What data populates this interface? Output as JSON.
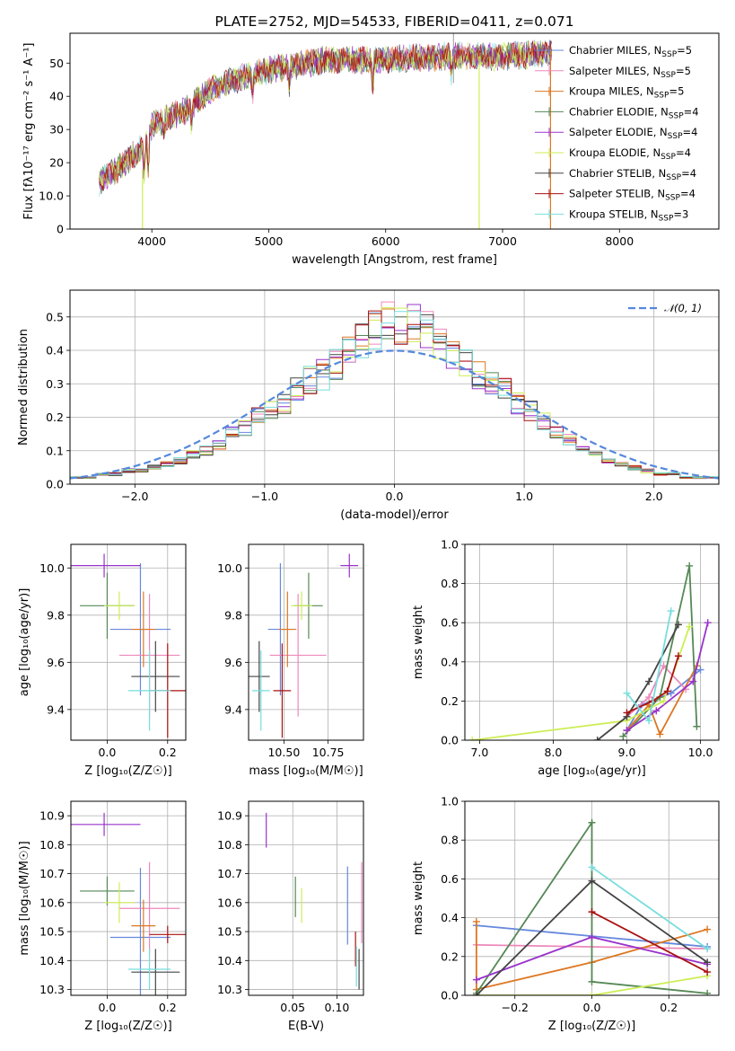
{
  "models": [
    {
      "name": "Chabrier MILES",
      "nssp": "5",
      "color": "#6688dd"
    },
    {
      "name": "Salpeter MILES",
      "nssp": "5",
      "color": "#ee88bb"
    },
    {
      "name": "Kroupa MILES",
      "nssp": "5",
      "color": "#dd7722"
    },
    {
      "name": "Chabrier ELODIE",
      "nssp": "4",
      "color": "#558855"
    },
    {
      "name": "Salpeter ELODIE",
      "nssp": "4",
      "color": "#9933cc"
    },
    {
      "name": "Kroupa ELODIE",
      "nssp": "4",
      "color": "#ccee55"
    },
    {
      "name": "Chabrier STELIB",
      "nssp": "4",
      "color": "#444444"
    },
    {
      "name": "Salpeter STELIB",
      "nssp": "4",
      "color": "#aa1111"
    },
    {
      "name": "Kroupa STELIB",
      "nssp": "3",
      "color": "#77dddd"
    }
  ],
  "chart_data": [
    {
      "id": "spectrum",
      "type": "line",
      "title": "PLATE=2752, MJD=54533, FIBERID=0411, z=0.071",
      "xlabel": "wavelength [Angstrom, rest frame]",
      "ylabel": "Flux [fλ10⁻¹⁷ erg cm⁻² s⁻¹ A⁻¹]",
      "xlim": [
        3300,
        8850
      ],
      "ylim": [
        0,
        59
      ],
      "xticks": [
        4000,
        5000,
        6000,
        7000,
        8000
      ],
      "yticks": [
        0,
        10,
        20,
        30,
        40,
        50
      ],
      "legend": "right",
      "continuum": {
        "x": [
          3550,
          3700,
          3900,
          4000,
          4100,
          4300,
          4500,
          4800,
          5000,
          5500,
          6000,
          6500,
          7000,
          7400
        ],
        "y": [
          14,
          18,
          24,
          31,
          33,
          36,
          42,
          46,
          48,
          51,
          51,
          52,
          52,
          53
        ]
      }
    },
    {
      "id": "residuals",
      "type": "line",
      "xlabel": "(data-model)/error",
      "ylabel": "Normed distribution",
      "xlim": [
        -2.5,
        2.5
      ],
      "ylim": [
        0,
        0.58
      ],
      "xticks": [
        -2,
        -1,
        0,
        1,
        2
      ],
      "yticks": [
        0,
        0.1,
        0.2,
        0.3,
        0.4,
        0.5
      ],
      "legend": "top-right",
      "reference_label": "𝒩(0, 1)",
      "reference_color": "#5588dd",
      "bins": {
        "start": -2.5,
        "width": 0.1
      },
      "histogram": [
        0.02,
        0.02,
        0.03,
        0.03,
        0.04,
        0.04,
        0.05,
        0.06,
        0.07,
        0.09,
        0.1,
        0.12,
        0.15,
        0.17,
        0.2,
        0.22,
        0.24,
        0.28,
        0.31,
        0.33,
        0.36,
        0.39,
        0.43,
        0.46,
        0.48,
        0.49,
        0.47,
        0.45,
        0.42,
        0.38,
        0.35,
        0.33,
        0.31,
        0.28,
        0.24,
        0.22,
        0.19,
        0.16,
        0.13,
        0.11,
        0.09,
        0.07,
        0.06,
        0.05,
        0.04,
        0.03,
        0.03,
        0.02,
        0.02,
        0.02
      ]
    },
    {
      "id": "age-vs-Z",
      "type": "scatter",
      "xlabel": "Z [log₁₀(Z/Z☉)]",
      "ylabel": "age  [log₁₀(age/yr)]",
      "xlim": [
        -0.12,
        0.26
      ],
      "ylim": [
        9.27,
        10.1
      ],
      "xticks": [
        0.0,
        0.2
      ],
      "yticks": [
        9.4,
        9.6,
        9.8,
        10.0
      ],
      "points": [
        {
          "model": 0,
          "x": 0.11,
          "y": 9.74,
          "xerr": 0.1,
          "yerr": 0.28
        },
        {
          "model": 1,
          "x": 0.14,
          "y": 9.63,
          "xerr": 0.1,
          "yerr": 0.26
        },
        {
          "model": 2,
          "x": 0.12,
          "y": 9.74,
          "xerr": 0.04,
          "yerr": 0.16
        },
        {
          "model": 3,
          "x": 0.0,
          "y": 9.84,
          "xerr": 0.09,
          "yerr": 0.14
        },
        {
          "model": 4,
          "x": -0.01,
          "y": 10.01,
          "xerr": 0.12,
          "yerr": 0.05
        },
        {
          "model": 5,
          "x": 0.04,
          "y": 9.84,
          "xerr": 0.05,
          "yerr": 0.06
        },
        {
          "model": 6,
          "x": 0.16,
          "y": 9.54,
          "xerr": 0.08,
          "yerr": 0.15
        },
        {
          "model": 7,
          "x": 0.2,
          "y": 9.48,
          "xerr": 0.06,
          "yerr": 0.2
        },
        {
          "model": 8,
          "x": 0.14,
          "y": 9.48,
          "xerr": 0.07,
          "yerr": 0.17
        }
      ]
    },
    {
      "id": "age-vs-mass",
      "type": "scatter",
      "xlabel": "mass [log₁₀(M/M☉)]",
      "ylabel": "",
      "xlim": [
        10.3,
        10.95
      ],
      "ylim": [
        9.27,
        10.1
      ],
      "xticks": [
        10.5,
        10.75
      ],
      "yticks": [
        9.4,
        9.6,
        9.8,
        10.0
      ],
      "points": [
        {
          "model": 0,
          "x": 10.48,
          "y": 9.74,
          "xerr": 0.07,
          "yerr": 0.28
        },
        {
          "model": 1,
          "x": 10.58,
          "y": 9.63,
          "xerr": 0.16,
          "yerr": 0.26
        },
        {
          "model": 2,
          "x": 10.52,
          "y": 9.74,
          "xerr": 0.05,
          "yerr": 0.16
        },
        {
          "model": 3,
          "x": 10.64,
          "y": 9.84,
          "xerr": 0.08,
          "yerr": 0.14
        },
        {
          "model": 4,
          "x": 10.87,
          "y": 10.01,
          "xerr": 0.05,
          "yerr": 0.05
        },
        {
          "model": 5,
          "x": 10.6,
          "y": 9.84,
          "xerr": 0.06,
          "yerr": 0.06
        },
        {
          "model": 6,
          "x": 10.36,
          "y": 9.54,
          "xerr": 0.06,
          "yerr": 0.15
        },
        {
          "model": 7,
          "x": 10.49,
          "y": 9.48,
          "xerr": 0.05,
          "yerr": 0.2
        },
        {
          "model": 8,
          "x": 10.37,
          "y": 9.48,
          "xerr": 0.05,
          "yerr": 0.17
        }
      ]
    },
    {
      "id": "weight-vs-age",
      "type": "line",
      "xlabel": "age  [log₁₀(age/yr)]",
      "ylabel": "mass weight",
      "xlim": [
        6.8,
        10.25
      ],
      "ylim": [
        0,
        1
      ],
      "xticks": [
        7,
        8,
        9,
        10
      ],
      "yticks": [
        0.0,
        0.2,
        0.4,
        0.6,
        0.8,
        1.0
      ],
      "series": [
        {
          "model": 0,
          "x": [
            9.0,
            9.2,
            9.6,
            10.0
          ],
          "y": [
            0.05,
            0.18,
            0.24,
            0.36
          ]
        },
        {
          "model": 1,
          "x": [
            9.0,
            9.3,
            9.5,
            9.8
          ],
          "y": [
            0.12,
            0.22,
            0.38,
            0.26
          ]
        },
        {
          "model": 2,
          "x": [
            9.0,
            9.3,
            9.45,
            9.95
          ],
          "y": [
            0.05,
            0.18,
            0.03,
            0.38
          ]
        },
        {
          "model": 3,
          "x": [
            8.95,
            9.45,
            9.85,
            9.95
          ],
          "y": [
            0.02,
            0.22,
            0.89,
            0.07
          ]
        },
        {
          "model": 4,
          "x": [
            9.0,
            9.4,
            9.9,
            10.1
          ],
          "y": [
            0.05,
            0.15,
            0.3,
            0.6
          ]
        },
        {
          "model": 5,
          "x": [
            6.9,
            9.0,
            9.5,
            9.85
          ],
          "y": [
            0.0,
            0.1,
            0.2,
            0.58
          ]
        },
        {
          "model": 6,
          "x": [
            8.6,
            9.0,
            9.3,
            9.7
          ],
          "y": [
            0.0,
            0.12,
            0.3,
            0.59
          ]
        },
        {
          "model": 7,
          "x": [
            9.0,
            9.35,
            9.55,
            9.7
          ],
          "y": [
            0.14,
            0.2,
            0.25,
            0.43
          ]
        },
        {
          "model": 8,
          "x": [
            9.0,
            9.3,
            9.6
          ],
          "y": [
            0.24,
            0.1,
            0.66
          ]
        }
      ]
    },
    {
      "id": "mass-vs-Z",
      "type": "scatter",
      "xlabel": "Z [log₁₀(Z/Z☉)]",
      "ylabel": "mass [log₁₀(M/M☉)]",
      "xlim": [
        -0.12,
        0.26
      ],
      "ylim": [
        10.28,
        10.95
      ],
      "xticks": [
        0.0,
        0.2
      ],
      "yticks": [
        10.3,
        10.4,
        10.5,
        10.6,
        10.7,
        10.8,
        10.9
      ],
      "points": [
        {
          "model": 0,
          "x": 0.11,
          "y": 10.48,
          "xerr": 0.1,
          "yerr": 0.24
        },
        {
          "model": 1,
          "x": 0.14,
          "y": 10.58,
          "xerr": 0.1,
          "yerr": 0.16
        },
        {
          "model": 2,
          "x": 0.12,
          "y": 10.52,
          "xerr": 0.04,
          "yerr": 0.09
        },
        {
          "model": 3,
          "x": 0.0,
          "y": 10.64,
          "xerr": 0.09,
          "yerr": 0.05
        },
        {
          "model": 4,
          "x": -0.01,
          "y": 10.87,
          "xerr": 0.12,
          "yerr": 0.04
        },
        {
          "model": 5,
          "x": 0.04,
          "y": 10.6,
          "xerr": 0.05,
          "yerr": 0.07
        },
        {
          "model": 6,
          "x": 0.16,
          "y": 10.36,
          "xerr": 0.08,
          "yerr": 0.08
        },
        {
          "model": 7,
          "x": 0.2,
          "y": 10.49,
          "xerr": 0.06,
          "yerr": 0.03
        },
        {
          "model": 8,
          "x": 0.14,
          "y": 10.37,
          "xerr": 0.07,
          "yerr": 0.07
        }
      ]
    },
    {
      "id": "mass-vs-ebv",
      "type": "scatter",
      "xlabel": "E(B-V)",
      "ylabel": "",
      "xlim": [
        0.0,
        0.13
      ],
      "ylim": [
        10.28,
        10.95
      ],
      "xticks": [
        0.05,
        0.1
      ],
      "yticks": [
        10.3,
        10.4,
        10.5,
        10.6,
        10.7,
        10.8,
        10.9
      ],
      "points": [
        {
          "model": 0,
          "x": 0.112,
          "y": 10.59,
          "xerr": 0.0,
          "yerr": 0.135
        },
        {
          "model": 1,
          "x": 0.128,
          "y": 10.6,
          "xerr": 0.0,
          "yerr": 0.14
        },
        {
          "model": 3,
          "x": 0.053,
          "y": 10.62,
          "xerr": 0.0,
          "yerr": 0.07
        },
        {
          "model": 4,
          "x": 0.02,
          "y": 10.85,
          "xerr": 0.0,
          "yerr": 0.06
        },
        {
          "model": 5,
          "x": 0.06,
          "y": 10.59,
          "xerr": 0.0,
          "yerr": 0.06
        },
        {
          "model": 6,
          "x": 0.125,
          "y": 10.37,
          "xerr": 0.0,
          "yerr": 0.07
        },
        {
          "model": 7,
          "x": 0.121,
          "y": 10.44,
          "xerr": 0.0,
          "yerr": 0.06
        },
        {
          "model": 8,
          "x": 0.122,
          "y": 10.38,
          "xerr": 0.0,
          "yerr": 0.07
        }
      ]
    },
    {
      "id": "weight-vs-Z",
      "type": "line",
      "xlabel": "Z [log₁₀(Z/Z☉)]",
      "ylabel": "mass weight",
      "xlim": [
        -0.33,
        0.33
      ],
      "ylim": [
        0,
        1
      ],
      "xticks": [
        -0.2,
        0.0,
        0.2
      ],
      "yticks": [
        0.0,
        0.2,
        0.4,
        0.6,
        0.8,
        1.0
      ],
      "series": [
        {
          "model": 0,
          "x": [
            -0.3,
            0.3
          ],
          "y": [
            0.36,
            0.25
          ]
        },
        {
          "model": 1,
          "x": [
            -0.3,
            0.3
          ],
          "y": [
            0.26,
            0.24
          ]
        },
        {
          "model": 2,
          "x": [
            -0.3,
            -0.3,
            0.0,
            0.3
          ],
          "y": [
            0.38,
            0.03,
            0.17,
            0.34
          ]
        },
        {
          "model": 3,
          "x": [
            -0.3,
            0.0,
            0.0,
            0.3
          ],
          "y": [
            0.01,
            0.89,
            0.07,
            0.01
          ]
        },
        {
          "model": 4,
          "x": [
            -0.3,
            0.0,
            0.3
          ],
          "y": [
            0.08,
            0.3,
            0.16
          ]
        },
        {
          "model": 5,
          "x": [
            -0.3,
            0.0,
            0.3
          ],
          "y": [
            0.0,
            0.0,
            0.1
          ]
        },
        {
          "model": 6,
          "x": [
            -0.3,
            0.0,
            0.3
          ],
          "y": [
            0.0,
            0.59,
            0.17
          ]
        },
        {
          "model": 7,
          "x": [
            0.0,
            0.3
          ],
          "y": [
            0.43,
            0.12
          ]
        },
        {
          "model": 8,
          "x": [
            0.0,
            0.3
          ],
          "y": [
            0.66,
            0.24
          ]
        }
      ]
    }
  ]
}
